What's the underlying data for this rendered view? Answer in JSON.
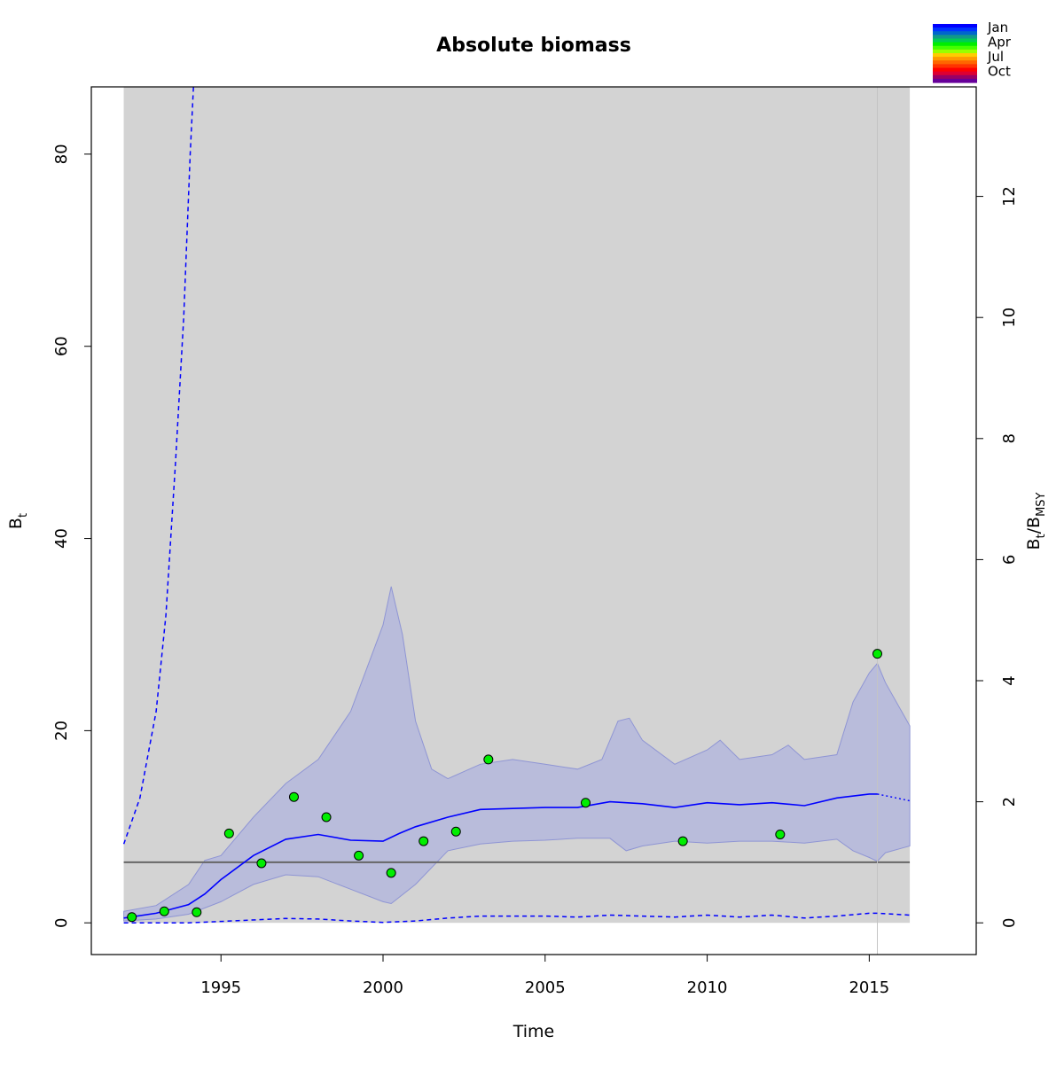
{
  "chart_data": {
    "type": "line",
    "title": "Absolute biomass",
    "xlabel": "Time",
    "ylabel": {
      "base": "B",
      "sub": "t"
    },
    "ylabel_right": {
      "base1": "B",
      "sub1": "t",
      "sep": "/B",
      "sub2": "MSY"
    },
    "xlim": [
      1991.0,
      2018.3
    ],
    "ylim": [
      -3.3,
      87.0
    ],
    "xticks": [
      1995,
      2000,
      2005,
      2010,
      2015
    ],
    "xtick_labels": [
      "1995",
      "2000",
      "2005",
      "2010",
      "2015"
    ],
    "yticks": [
      0,
      20,
      40,
      60,
      80
    ],
    "ytick_labels": [
      "0",
      "20",
      "40",
      "60",
      "80"
    ],
    "right_axis": {
      "bmsy": 6.3,
      "ticks": [
        0,
        2,
        4,
        6,
        8,
        10,
        12
      ],
      "tick_labels": [
        "0",
        "2",
        "4",
        "6",
        "8",
        "10",
        "12"
      ]
    },
    "shaded_region": {
      "x": [
        1992.0,
        2016.25
      ]
    },
    "data_end_line_x": 2015.25,
    "bmsy_line": 6.3,
    "observations": {
      "x": [
        1992.25,
        1993.25,
        1994.25,
        1995.25,
        1996.25,
        1997.25,
        1998.25,
        1999.25,
        2000.25,
        2001.25,
        2002.25,
        2003.25,
        2006.25,
        2009.25,
        2012.25,
        2015.25
      ],
      "y": [
        0.6,
        1.2,
        1.1,
        9.3,
        6.2,
        13.1,
        11.0,
        7.0,
        5.2,
        8.5,
        9.5,
        17.0,
        12.5,
        8.5,
        9.2,
        28.0
      ]
    },
    "estimate": {
      "x": [
        1992.0,
        1993.0,
        1994.0,
        1994.5,
        1995.0,
        1996.0,
        1997.0,
        1998.0,
        1999.0,
        2000.0,
        2000.5,
        2001.0,
        2002.0,
        2003.0,
        2004.0,
        2005.0,
        2006.0,
        2007.0,
        2008.0,
        2009.0,
        2010.0,
        2011.0,
        2012.0,
        2013.0,
        2014.0,
        2015.0,
        2015.25
      ],
      "y": [
        0.5,
        1.0,
        1.9,
        3.0,
        4.5,
        7.0,
        8.7,
        9.2,
        8.6,
        8.5,
        9.3,
        10.0,
        11.0,
        11.8,
        11.9,
        12.0,
        12.0,
        12.6,
        12.4,
        12.0,
        12.5,
        12.3,
        12.5,
        12.2,
        13.0,
        13.4,
        13.4
      ]
    },
    "forecast": {
      "x": [
        2015.25,
        2016.25
      ],
      "y": [
        13.4,
        12.7
      ]
    },
    "ci_upper": {
      "x": [
        1992.0,
        1993.0,
        1994.0,
        1994.5,
        1995.0,
        1996.0,
        1997.0,
        1998.0,
        1999.0,
        2000.0,
        2000.25,
        2000.6,
        2001.0,
        2001.5,
        2002.0,
        2003.0,
        2004.0,
        2005.0,
        2006.0,
        2006.75,
        2007.25,
        2007.6,
        2008.0,
        2009.0,
        2010.0,
        2010.4,
        2011.0,
        2012.0,
        2012.5,
        2013.0,
        2014.0,
        2014.5,
        2015.0,
        2015.25,
        2015.5,
        2016.25
      ],
      "y": [
        1.2,
        1.8,
        4.0,
        6.5,
        7.0,
        11.0,
        14.5,
        17.0,
        22.0,
        31.0,
        35.0,
        30.0,
        21.0,
        16.0,
        15.0,
        16.5,
        17.0,
        16.5,
        16.0,
        17.0,
        21.0,
        21.3,
        19.0,
        16.5,
        18.0,
        19.0,
        17.0,
        17.5,
        18.5,
        17.0,
        17.5,
        23.0,
        26.0,
        27.0,
        25.0,
        20.5
      ]
    },
    "ci_lower": {
      "x": [
        1992.0,
        1993.0,
        1994.0,
        1995.0,
        1996.0,
        1997.0,
        1998.0,
        1999.0,
        2000.0,
        2000.25,
        2001.0,
        2002.0,
        2003.0,
        2004.0,
        2005.0,
        2006.0,
        2007.0,
        2007.5,
        2008.0,
        2009.0,
        2010.0,
        2011.0,
        2012.0,
        2013.0,
        2014.0,
        2014.5,
        2015.0,
        2015.25,
        2015.5,
        2016.25
      ],
      "y": [
        0.2,
        0.4,
        0.9,
        2.2,
        4.0,
        5.0,
        4.8,
        3.5,
        2.2,
        2.0,
        4.0,
        7.5,
        8.2,
        8.5,
        8.6,
        8.8,
        8.8,
        7.5,
        8.0,
        8.5,
        8.3,
        8.5,
        8.5,
        8.3,
        8.7,
        7.5,
        6.8,
        6.4,
        7.3,
        8.0
      ]
    },
    "pred_upper": {
      "x": [
        1992.0,
        1992.5,
        1993.0,
        1993.3,
        1993.6,
        1993.85,
        1994.05,
        1994.15
      ],
      "y": [
        8.2,
        13.0,
        22.0,
        32.0,
        48.0,
        63.0,
        80.0,
        87.0
      ]
    },
    "pred_lower": {
      "x": [
        1992.0,
        1993.0,
        1994.0,
        1995.0,
        1997.0,
        1998.0,
        1999.0,
        2000.0,
        2001.0,
        2002.0,
        2003.0,
        2004.0,
        2005.0,
        2006.0,
        2007.0,
        2008.0,
        2009.0,
        2010.0,
        2011.0,
        2012.0,
        2013.0,
        2014.0,
        2015.0,
        2015.25,
        2016.25
      ],
      "y": [
        0.0,
        0.0,
        0.0,
        0.15,
        0.45,
        0.4,
        0.2,
        0.05,
        0.2,
        0.5,
        0.7,
        0.7,
        0.7,
        0.6,
        0.8,
        0.7,
        0.6,
        0.8,
        0.6,
        0.8,
        0.5,
        0.7,
        1.0,
        1.0,
        0.8
      ]
    },
    "legend": {
      "labels": [
        "Jan",
        "Apr",
        "Jul",
        "Oct"
      ],
      "colors": [
        "#0000ff",
        "#0033ff",
        "#0066cc",
        "#119988",
        "#00cc55",
        "#00ee00",
        "#44ff00",
        "#99ff00",
        "#ffcc00",
        "#ff9900",
        "#ff6600",
        "#ff3300",
        "#ff0000",
        "#dd0033",
        "#990066",
        "#660099"
      ],
      "placement": "top-right"
    },
    "colors": {
      "panel_bg": "#d3d3d3",
      "ci_fill": "#b9bcdb",
      "ci_edge": "#8f95d4",
      "line": "#0000ff",
      "points": "#00ee00",
      "bmsy_line": "#666666",
      "end_line": "#c4c4c4"
    },
    "grid": false
  }
}
